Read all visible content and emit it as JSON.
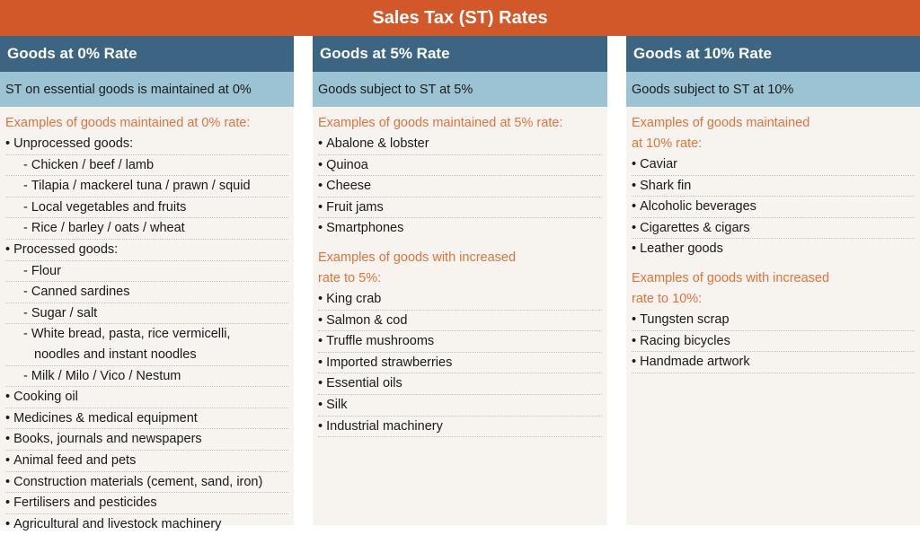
{
  "title": "Sales Tax (ST) Rates",
  "columns": [
    {
      "header": "Goods at 0% Rate",
      "subheader": "ST on essential goods is maintained at 0%",
      "sections": [
        {
          "title": "Examples of goods maintained at 0% rate:",
          "items": [
            "Unprocessed goods:",
            "Chicken / beef / lamb",
            "Tilapia / mackerel tuna / prawn / squid",
            "Local vegetables and fruits",
            "Rice / barley / oats / wheat",
            "Processed goods:",
            "Flour",
            "Canned sardines",
            "Sugar / salt",
            "White bread, pasta, rice vermicelli,",
            "noodles and instant noodles",
            "Milk / Milo / Vico / Nestum",
            "Cooking oil",
            "Medicines & medical equipment",
            "Books, journals and newspapers",
            "Animal feed and pets",
            "Construction materials (cement, sand, iron)",
            "Fertilisers and pesticides",
            "Agricultural and livestock machinery"
          ]
        }
      ]
    },
    {
      "header": "Goods at 5% Rate",
      "subheader": "Goods subject to ST at 5%",
      "sections": [
        {
          "title": "Examples of goods maintained at 5% rate:",
          "items": [
            "Abalone & lobster",
            "Quinoa",
            "Cheese",
            "Fruit jams",
            "Smartphones"
          ]
        },
        {
          "title_line1": "Examples of goods with increased",
          "title_line2": "rate to 5%:",
          "items": [
            "King crab",
            "Salmon & cod",
            "Truffle mushrooms",
            "Imported strawberries",
            "Essential oils",
            "Silk",
            "Industrial machinery"
          ]
        }
      ]
    },
    {
      "header": "Goods at 10% Rate",
      "subheader": "Goods subject to ST at 10%",
      "sections": [
        {
          "title_line1": "Examples of goods maintained",
          "title_line2": "at 10% rate:",
          "items": [
            "Caviar",
            "Shark fin",
            "Alcoholic beverages",
            "Cigarettes & cigars",
            "Leather goods"
          ]
        },
        {
          "title_line1": "Examples of goods with increased",
          "title_line2": "rate to 10%:",
          "items": [
            "Tungsten scrap",
            "Racing bicycles",
            "Handmade artwork"
          ]
        }
      ]
    }
  ]
}
